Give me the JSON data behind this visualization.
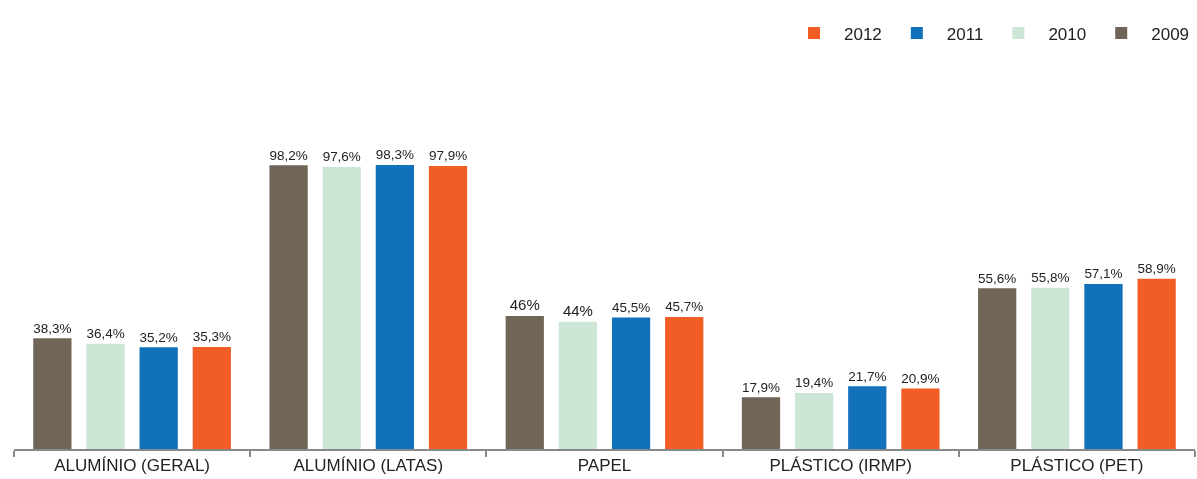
{
  "chart_data": {
    "type": "bar",
    "categories": [
      "ALUMÍNIO (GERAL)",
      "ALUMÍNIO (LATAS)",
      "PAPEL",
      "PLÁSTICO (IRMP)",
      "PLÁSTICO (PET)"
    ],
    "series": [
      {
        "name": "2009",
        "color": "#716557",
        "values": [
          38.3,
          98.2,
          46,
          17.9,
          55.6
        ],
        "value_labels": [
          "38,3%",
          "98,2%",
          "46%",
          "17,9%",
          "55,6%"
        ]
      },
      {
        "name": "2010",
        "color": "#cde6d5",
        "values": [
          36.4,
          97.6,
          44,
          19.4,
          55.8
        ],
        "value_labels": [
          "36,4%",
          "97,6%",
          "44%",
          "19,4%",
          "55,8%"
        ]
      },
      {
        "name": "2011",
        "color": "#1271bb",
        "values": [
          35.2,
          98.3,
          45.5,
          21.7,
          57.1
        ],
        "value_labels": [
          "35,2%",
          "98,3%",
          "45,5%",
          "21,7%",
          "57,1%"
        ]
      },
      {
        "name": "2012",
        "color": "#f15d24",
        "values": [
          35.3,
          97.9,
          45.7,
          20.9,
          58.9
        ],
        "value_labels": [
          "35,3%",
          "97,9%",
          "45,7%",
          "20,9%",
          "58,9%"
        ]
      }
    ],
    "legend": "top right",
    "grid": false
  }
}
